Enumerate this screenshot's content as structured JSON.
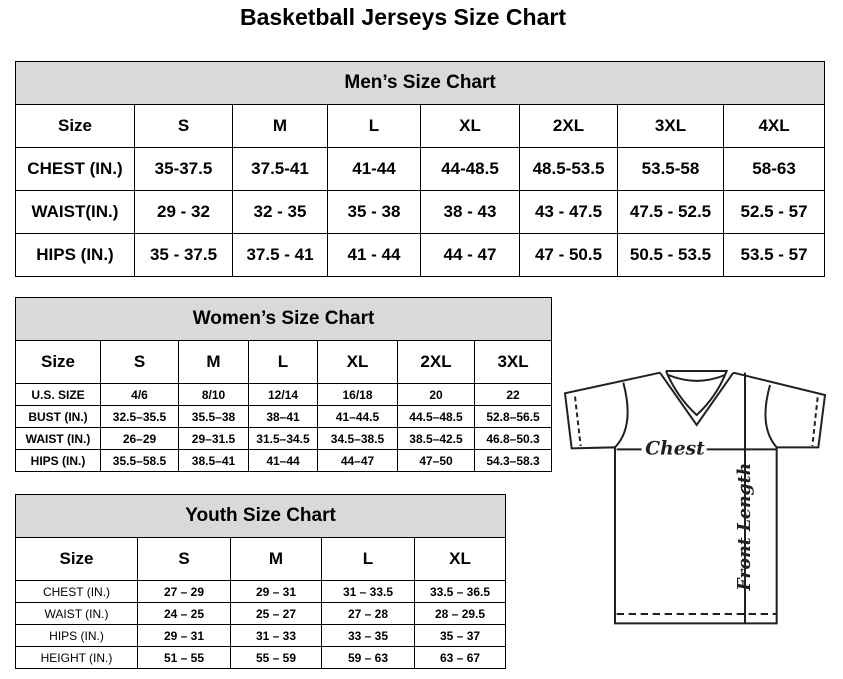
{
  "title": "Basketball Jerseys Size Chart",
  "men": {
    "title": "Men’s Size Chart",
    "header": [
      "Size",
      "S",
      "M",
      "L",
      "XL",
      "2XL",
      "3XL",
      "4XL"
    ],
    "rows": [
      [
        "CHEST (IN.)",
        "35-37.5",
        "37.5-41",
        "41-44",
        "44-48.5",
        "48.5-53.5",
        "53.5-58",
        "58-63"
      ],
      [
        "WAIST(IN.)",
        "29 - 32",
        "32 - 35",
        "35 - 38",
        "38 - 43",
        "43 - 47.5",
        "47.5 - 52.5",
        "52.5 - 57"
      ],
      [
        "HIPS (IN.)",
        "35 - 37.5",
        "37.5 - 41",
        "41 - 44",
        "44 - 47",
        "47 - 50.5",
        "50.5 - 53.5",
        "53.5 - 57"
      ]
    ]
  },
  "women": {
    "title": "Women’s Size Chart",
    "header": [
      "Size",
      "S",
      "M",
      "L",
      "XL",
      "2XL",
      "3XL"
    ],
    "rows": [
      [
        "U.S.  SIZE",
        "4/6",
        "8/10",
        "12/14",
        "16/18",
        "20",
        "22"
      ],
      [
        "BUST  (IN.)",
        "32.5–35.5",
        "35.5–38",
        "38–41",
        "41–44.5",
        "44.5–48.5",
        "52.8–56.5"
      ],
      [
        "WAIST  (IN.)",
        "26–29",
        "29–31.5",
        "31.5–34.5",
        "34.5–38.5",
        "38.5–42.5",
        "46.8–50.3"
      ],
      [
        "HIPS  (IN.)",
        "35.5–58.5",
        "38.5–41",
        "41–44",
        "44–47",
        "47–50",
        "54.3–58.3"
      ]
    ]
  },
  "youth": {
    "title": "Youth Size Chart",
    "header": [
      "Size",
      "S",
      "M",
      "L",
      "XL"
    ],
    "rows": [
      [
        "CHEST  (IN.)",
        "27  –  29",
        "29  –  31",
        "31  –  33.5",
        "33.5  –  36.5"
      ],
      [
        "WAIST  (IN.)",
        "24  –  25",
        "25  –  27",
        "27  –  28",
        "28  –  29.5"
      ],
      [
        "HIPS  (IN.)",
        "29  –  31",
        "31  –  33",
        "33  –  35",
        "35  –  37"
      ],
      [
        "HEIGHT  (IN.)",
        "51  –  55",
        "55  –  59",
        "59  –  63",
        "63  –  67"
      ]
    ]
  },
  "diagram": {
    "chest_label": "Chest",
    "length_label": "Front Length"
  }
}
